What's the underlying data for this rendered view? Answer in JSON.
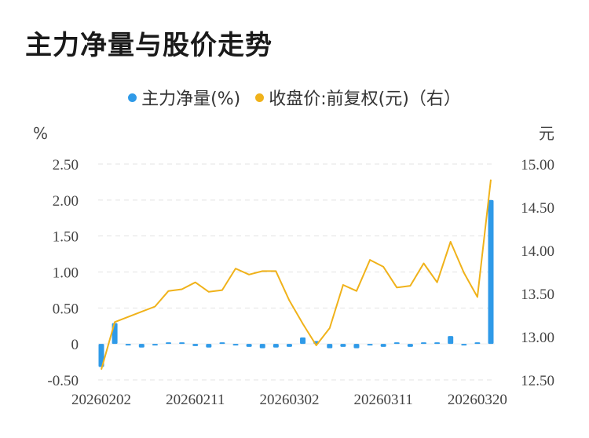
{
  "title": "主力净量与股价走势",
  "legend": {
    "series1": "主力净量(%)",
    "series2": "收盘价:前复权(元)（右）"
  },
  "colors": {
    "bar": "#2f9ae8",
    "line": "#f0b21a",
    "grid": "#e3e3e3"
  },
  "chart_data": {
    "type": "bar",
    "y_left_unit": "%",
    "y_right_unit": "元",
    "y_left_ticks": [
      "2.50",
      "2.00",
      "1.50",
      "1.00",
      "0.50",
      "0",
      "-0.50"
    ],
    "y_right_ticks": [
      "15.00",
      "14.50",
      "14.00",
      "13.50",
      "13.00",
      "12.50"
    ],
    "ylim_left": [
      -0.5,
      2.5
    ],
    "ylim_right": [
      12.5,
      15.0
    ],
    "x_tick_labels": [
      "20260202",
      "20260211",
      "20260302",
      "20260311",
      "20260320"
    ],
    "x_tick_indices": [
      0,
      7,
      14,
      21,
      28
    ],
    "grid": true,
    "series": [
      {
        "name": "主力净量(%)",
        "type": "bar",
        "axis": "left",
        "values": [
          -0.32,
          0.29,
          -0.01,
          -0.05,
          -0.01,
          0.01,
          0.01,
          -0.03,
          -0.05,
          0.01,
          -0.01,
          -0.04,
          -0.06,
          -0.05,
          -0.04,
          0.09,
          0.04,
          -0.06,
          -0.04,
          -0.06,
          -0.01,
          -0.04,
          0.0,
          -0.04,
          0.01,
          0.02,
          0.11,
          -0.01,
          0.01,
          2.0
        ]
      },
      {
        "name": "收盘价:前复权(元)（右）",
        "type": "line",
        "axis": "right",
        "values": [
          12.62,
          13.17,
          13.23,
          13.29,
          13.35,
          13.53,
          13.55,
          13.63,
          13.52,
          13.54,
          13.79,
          13.72,
          13.76,
          13.76,
          13.42,
          13.15,
          12.9,
          13.1,
          13.6,
          13.53,
          13.89,
          13.81,
          13.57,
          13.59,
          13.85,
          13.63,
          14.1,
          13.74,
          13.46,
          14.82
        ]
      }
    ]
  }
}
